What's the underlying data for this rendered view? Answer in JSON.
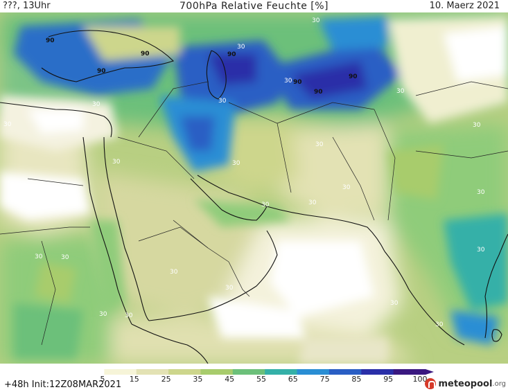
{
  "header": {
    "left": "???, 13Uhr",
    "title": "700hPa Relative Feuchte [%]",
    "date": "10. Maerz 2021"
  },
  "footer": {
    "init": "+48h Init:12Z08MAR2021",
    "logo_main": "meteopool",
    "logo_suffix": ".org"
  },
  "legend": {
    "ticks": [
      "5",
      "15",
      "25",
      "35",
      "45",
      "55",
      "65",
      "75",
      "85",
      "95",
      "100"
    ],
    "colors": [
      "#ffffff",
      "#f6f4d8",
      "#e3e2b4",
      "#cdd68c",
      "#a8cc6c",
      "#6cc07a",
      "#34b0a8",
      "#2a8ed4",
      "#2a5ec4",
      "#2a2fa8",
      "#3a1880"
    ]
  },
  "map_labels": [
    {
      "text": "90"
    },
    {
      "text": "90"
    },
    {
      "text": "90"
    },
    {
      "text": "90"
    },
    {
      "text": "90"
    },
    {
      "text": "90"
    },
    {
      "text": "90"
    },
    {
      "text": "30"
    },
    {
      "text": "30"
    },
    {
      "text": "30"
    },
    {
      "text": "30"
    },
    {
      "text": "30"
    },
    {
      "text": "30"
    },
    {
      "text": "30"
    },
    {
      "text": "30"
    },
    {
      "text": "30"
    },
    {
      "text": "30"
    },
    {
      "text": "30"
    },
    {
      "text": "30"
    },
    {
      "text": "30"
    },
    {
      "text": "30"
    },
    {
      "text": "30"
    },
    {
      "text": "30"
    },
    {
      "text": "30"
    },
    {
      "text": "30"
    },
    {
      "text": "30"
    },
    {
      "text": "30"
    },
    {
      "text": "30"
    },
    {
      "text": "30"
    },
    {
      "text": "30"
    },
    {
      "text": "30"
    },
    {
      "text": "30"
    }
  ]
}
